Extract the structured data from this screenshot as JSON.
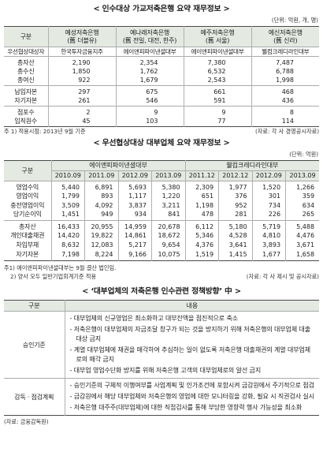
{
  "section1": {
    "title": "< 인수대상 가교저축은행 요약 재무정보 >",
    "unit": "(단위: 억원, 개, 명)",
    "header_label": "구분",
    "bidder_label": "우선협상대상자",
    "banks": [
      {
        "name": "예성저축은행",
        "former": "(舊 더블유)",
        "bidder": "한국투자금융지주"
      },
      {
        "name": "예나래저축은행",
        "former": "(舊 전일, 대전, 한주)",
        "bidder": "에이앤피파이낸셜대부"
      },
      {
        "name": "예주저축은행",
        "former": "(舊 서울)",
        "bidder": "에이앤피파이낸셜대부"
      },
      {
        "name": "예신저축은행",
        "former": "(舊 신라)",
        "bidder": "웰컴크레디라인대부"
      }
    ],
    "rows": [
      {
        "label": "총자산",
        "values": [
          "2,190",
          "2,354",
          "7,380",
          "7,487"
        ]
      },
      {
        "label": "총수신",
        "values": [
          "1,850",
          "1,762",
          "6,532",
          "6,788"
        ]
      },
      {
        "label": "총여신",
        "values": [
          "922",
          "1,679",
          "2,543",
          "1,998"
        ]
      },
      {
        "label": "납입자본",
        "values": [
          "297",
          "675",
          "661",
          "468"
        ]
      },
      {
        "label": "자기자본",
        "values": [
          "261",
          "546",
          "591",
          "436"
        ]
      },
      {
        "label": "점포수",
        "values": [
          "2",
          "9",
          "9",
          "8"
        ]
      },
      {
        "label": "임직원수",
        "values": [
          "45",
          "103",
          "77",
          "114"
        ]
      }
    ],
    "note": "주 1) 적용시점: 2013년 9월 기준",
    "source": "(자료: 각 사 경영공시자료)"
  },
  "section2": {
    "title": "< 우선협상대상 대부업체 요약 재무정보 >",
    "unit": "(단위: 억원)",
    "header_label": "구분",
    "companies": [
      {
        "name": "에이앤피파이낸셜대부",
        "periods": [
          "2010.09",
          "2011.09",
          "2012.09",
          "2013.09"
        ]
      },
      {
        "name": "웰컴크레디라인대부",
        "periods": [
          "2011.12",
          "2012.12",
          "2012.09",
          "2013.09"
        ]
      }
    ],
    "rows": [
      {
        "label": "영업수익",
        "values": [
          "5,440",
          "6,891",
          "5,693",
          "5,380",
          "2,309",
          "1,977",
          "1,520",
          "1,266"
        ]
      },
      {
        "label": "영업이익",
        "values": [
          "1,799",
          "893",
          "1,117",
          "1,220",
          "651",
          "376",
          "301",
          "359"
        ]
      },
      {
        "label": "충전영업이익",
        "values": [
          "3,509",
          "4,092",
          "3,837",
          "3,211",
          "1,198",
          "952",
          "734",
          "634"
        ]
      },
      {
        "label": "당기순이익",
        "values": [
          "1,451",
          "949",
          "934",
          "841",
          "478",
          "281",
          "226",
          "265"
        ]
      },
      {
        "label": "총자산",
        "values": [
          "16,433",
          "20,955",
          "14,959",
          "20,678",
          "6,112",
          "5,180",
          "5,719",
          "5,488"
        ]
      },
      {
        "label": "개인대출채권",
        "values": [
          "14,420",
          "19,822",
          "14,861",
          "18,672",
          "5,346",
          "4,528",
          "4,810",
          "4,476"
        ]
      },
      {
        "label": "차입부채",
        "values": [
          "8,632",
          "12,083",
          "5,217",
          "9,654",
          "4,376",
          "3,641",
          "3,893",
          "3,671"
        ]
      },
      {
        "label": "자기자본",
        "values": [
          "7,198",
          "8,224",
          "9,166",
          "10,075",
          "1,519",
          "1,415",
          "1,677",
          "1,658"
        ]
      }
    ],
    "notes": [
      "주1) 에이앤피파이낸셜대부는 9월 결산 법인임.",
      "2) 양사 모두 일반기업회계기준 적용"
    ],
    "source": "(자료: 각 사 제시 및 공시자료)"
  },
  "section3": {
    "title": "< ‘대부업체의 저축은행 인수관련 정책방향’ 中 >",
    "header_label": "구분",
    "header_content": "내용",
    "rows": [
      {
        "label": "승인기준",
        "items": [
          "대부업체의 신규영업은 최소화하고 대부잔액을 점진적으로 축소",
          "저축은행이 대부업체의 자금조달 창구가 되는 것을 방지하기 위해 저축은행의 대부업체 대출 대상 금지",
          "계열 대부업체에 채권을 매각하여 추심하는 일이 없도록 저축은행 대출채권의 계열 대부업체로의 매각 금지",
          "대부업 영업수단화 방지를 위해 저축은행 고객의 대부업체로의 알선 금지"
        ]
      },
      {
        "label": "감독 · 점검계획",
        "items": [
          "승인기준의 구체적 이행여부를 사업계획 및 인가조건에 포함시켜 금감원에서 주기적으로 점검",
          "금감원에서 해당 대부업체와 저축은행의 영업에 대한 모니터링을 강화, 필요 시 직권검사 실시",
          "저축은행 대주주(대부업체)에 대한 직접검사를 통해 부당한 영향력 행사 가능성을 최소화"
        ]
      }
    ],
    "source": "(자료: 금융감독원)"
  }
}
